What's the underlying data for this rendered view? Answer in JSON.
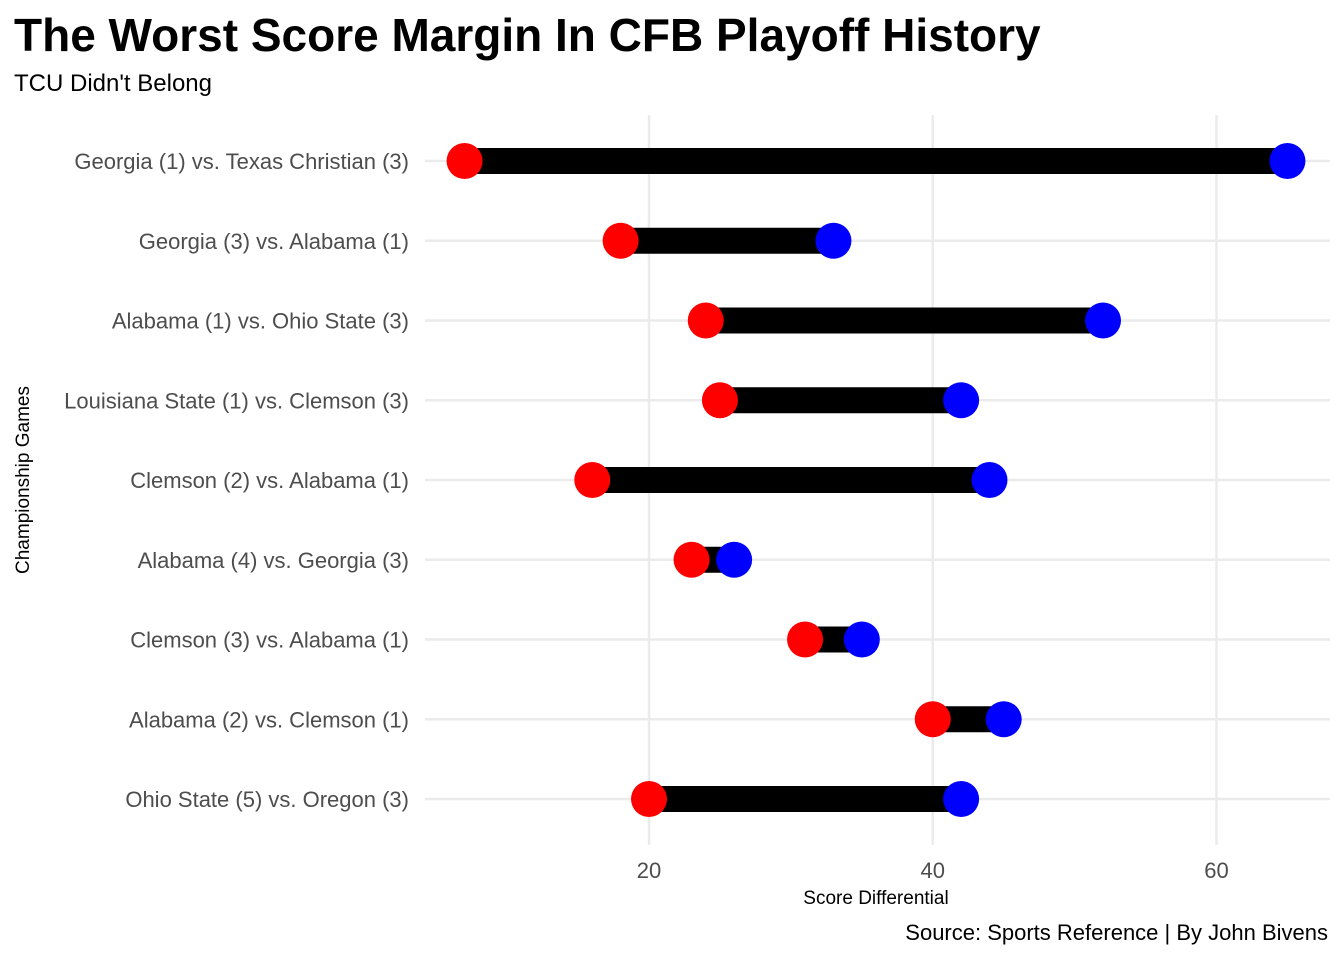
{
  "title": "The Worst Score Margin In CFB Playoff History",
  "subtitle": "TCU Didn't Belong",
  "caption": "Source: Sports Reference | By John Bivens",
  "colors": {
    "low": "#ff0000",
    "high": "#0000ff",
    "segment": "#000000",
    "grid": "#ebebeb"
  },
  "chart_data": {
    "type": "dumbbell",
    "xlabel": "Score Differential",
    "ylabel": "Championship Games",
    "xlim": [
      5.5,
      67
    ],
    "xticks": [
      20,
      40,
      60
    ],
    "grid": true,
    "categories": [
      "Georgia (1) vs. Texas Christian (3)",
      "Georgia (3) vs. Alabama (1)",
      "Alabama (1) vs. Ohio State (3)",
      "Louisiana State (1) vs. Clemson (3)",
      "Clemson (2) vs. Alabama (1)",
      "Alabama (4) vs. Georgia (3)",
      "Clemson (3) vs. Alabama (1)",
      "Alabama (2) vs. Clemson (1)",
      "Ohio State (5) vs. Oregon (3)"
    ],
    "low_values": [
      7,
      18,
      24,
      25,
      16,
      23,
      31,
      40,
      20
    ],
    "high_values": [
      65,
      33,
      52,
      42,
      44,
      26,
      35,
      45,
      42
    ]
  }
}
